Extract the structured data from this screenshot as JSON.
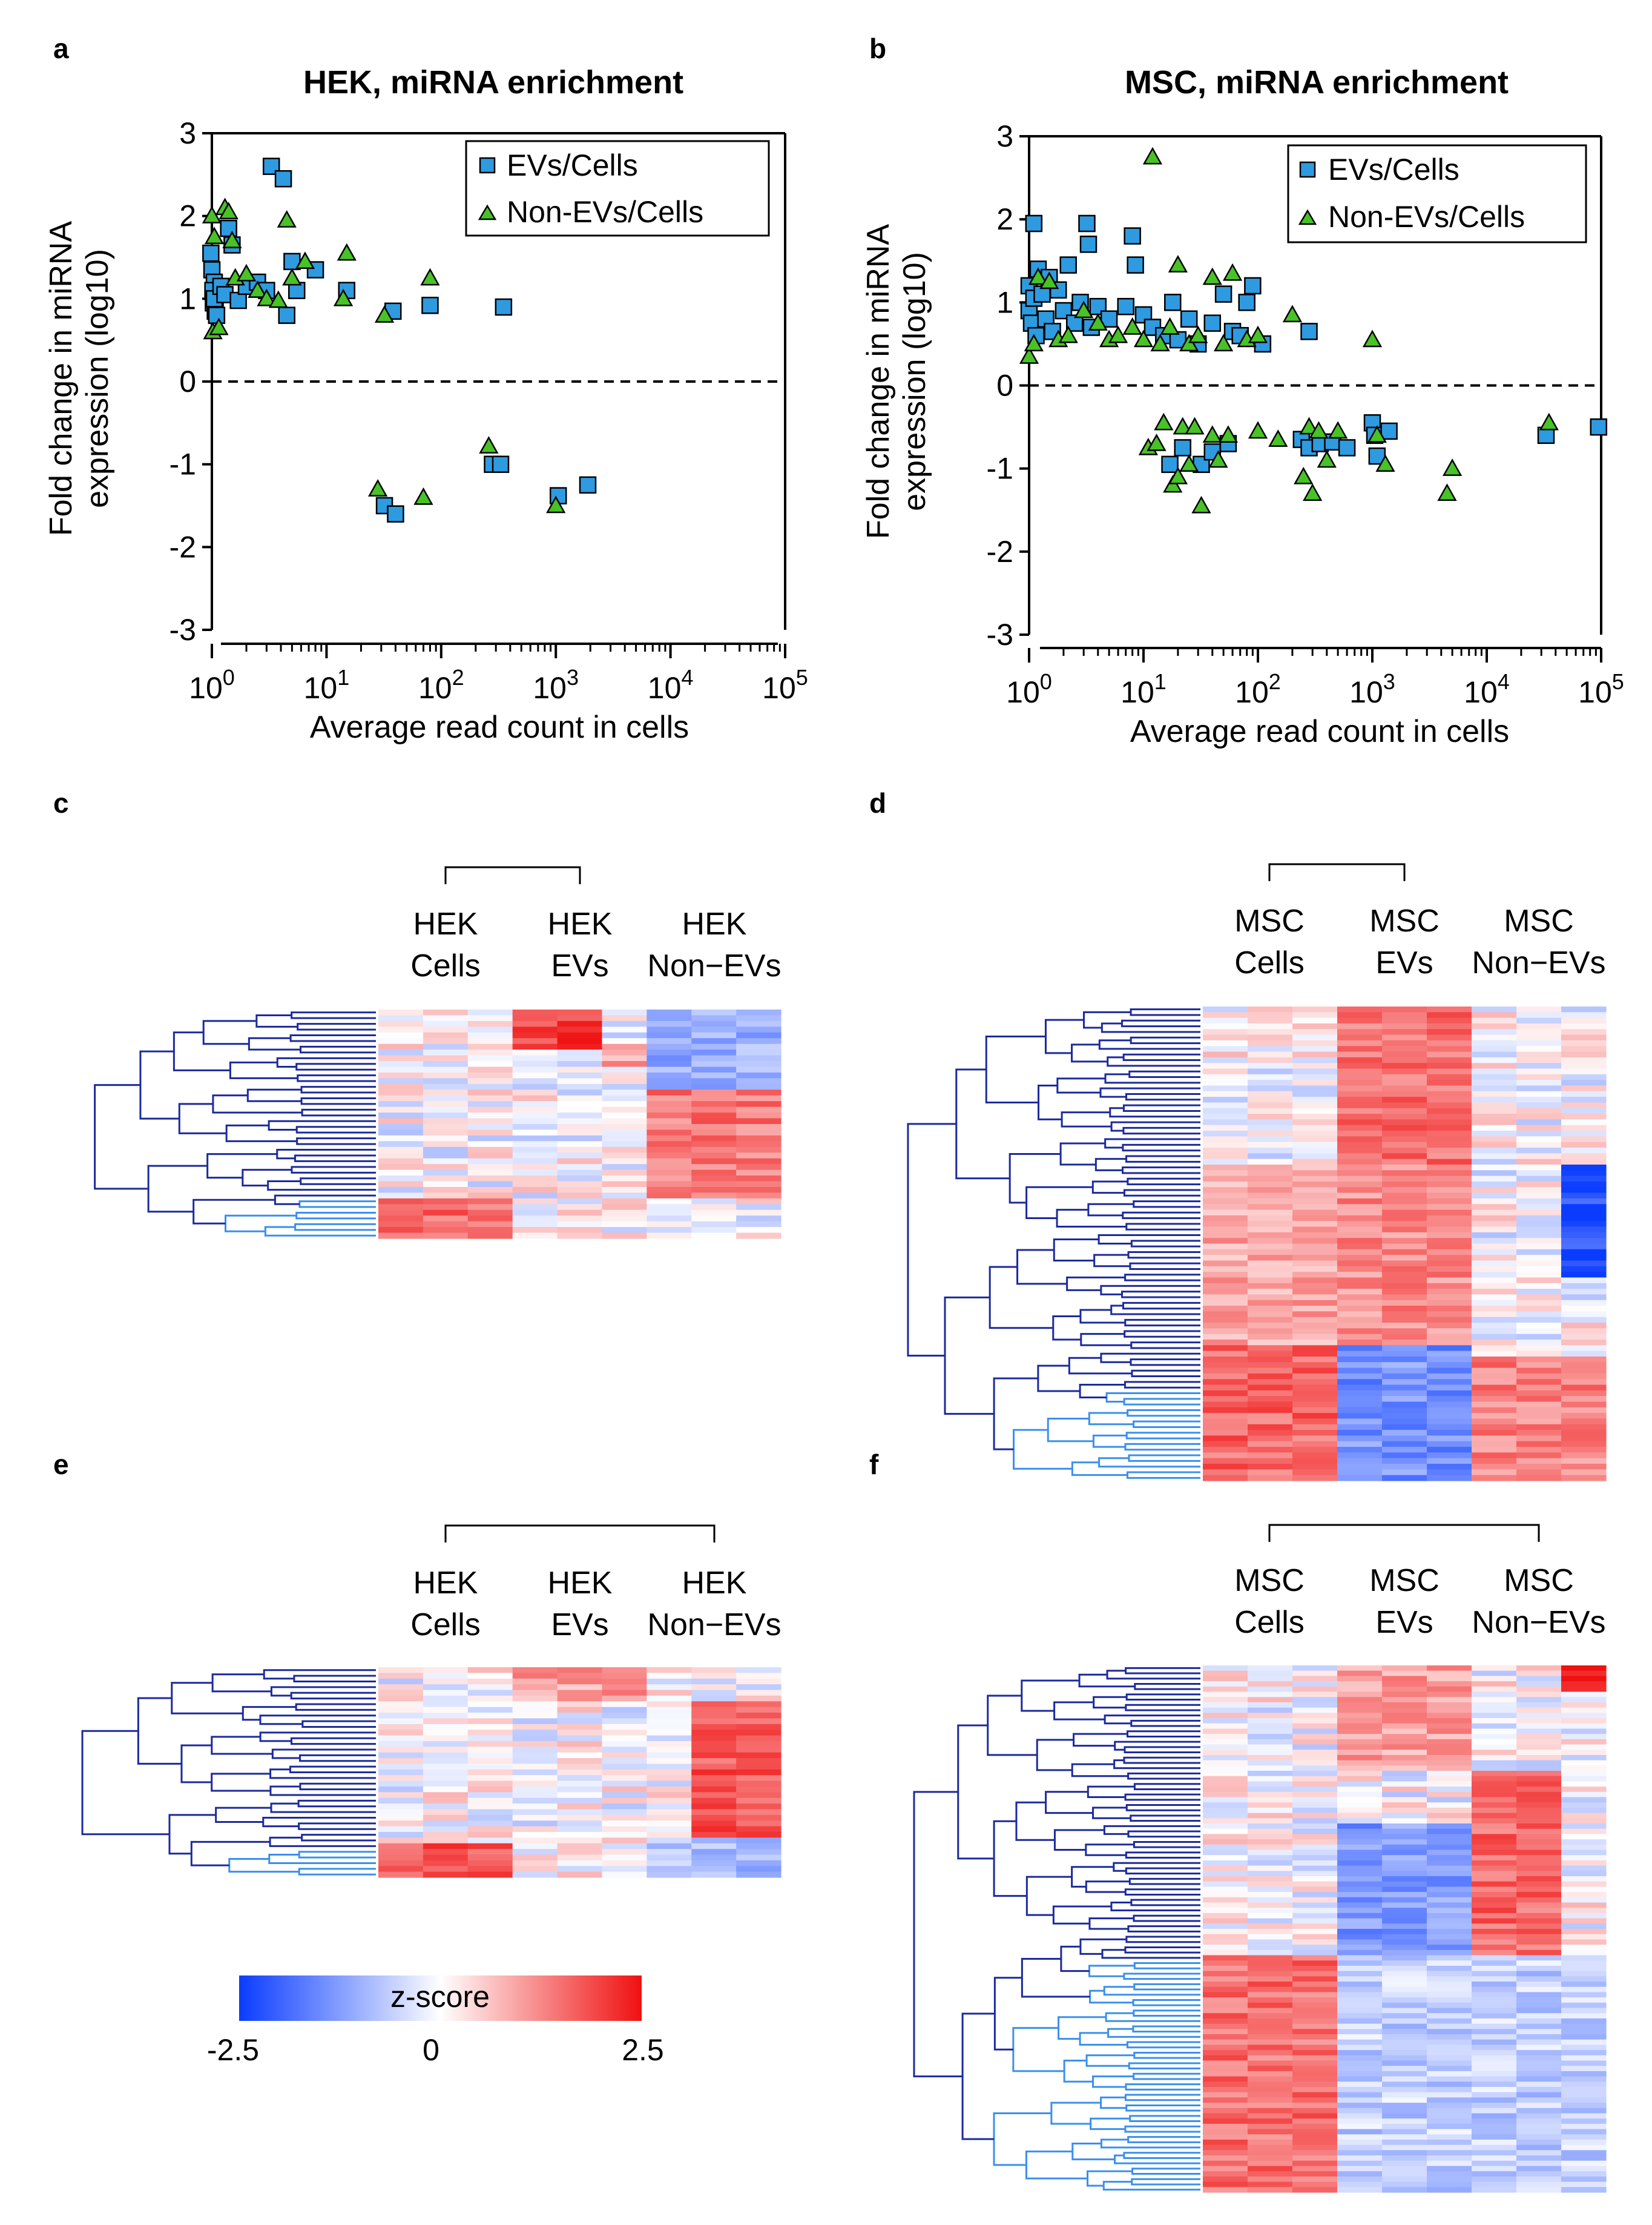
{
  "colors": {
    "ev": "#2e9ae0",
    "nonev": "#48c227",
    "tree_dark": "#1c2a9c",
    "tree_light": "#3a8fee",
    "low": "#0a3cff",
    "mid": "#ffffff",
    "high": "#f01010"
  },
  "panels": {
    "a": {
      "label": "a",
      "title": "HEK, miRNA enrichment"
    },
    "b": {
      "label": "b",
      "title": "MSC, miRNA enrichment"
    },
    "c": {
      "label": "c"
    },
    "d": {
      "label": "d"
    },
    "e": {
      "label": "e"
    },
    "f": {
      "label": "f"
    }
  },
  "axes": {
    "ylabel1": "Fold change in miRNA",
    "ylabel2": "expression (log10)",
    "xlabel": "Average read count in cells",
    "yticks": [
      "3",
      "2",
      "1",
      "0",
      "-1",
      "-2",
      "-3"
    ],
    "xticks": [
      {
        "base": "10",
        "exp": "0"
      },
      {
        "base": "10",
        "exp": "1"
      },
      {
        "base": "10",
        "exp": "2"
      },
      {
        "base": "10",
        "exp": "3"
      },
      {
        "base": "10",
        "exp": "4"
      },
      {
        "base": "10",
        "exp": "5"
      }
    ]
  },
  "legend": {
    "ev": "EVs/Cells",
    "nonev": "Non-EVs/Cells"
  },
  "heatmaps": {
    "hek_groups": [
      {
        "l1": "HEK",
        "l2": "Cells"
      },
      {
        "l1": "HEK",
        "l2": "EVs"
      },
      {
        "l1": "HEK",
        "l2": "Non−EVs"
      }
    ],
    "msc_groups": [
      {
        "l1": "MSC",
        "l2": "Cells"
      },
      {
        "l1": "MSC",
        "l2": "EVs"
      },
      {
        "l1": "MSC",
        "l2": "Non−EVs"
      }
    ],
    "colorbar": {
      "label": "z-score",
      "min": "-2.5",
      "mid": "0",
      "max": "2.5"
    }
  },
  "chart_data": [
    {
      "type": "scatter",
      "title": "HEK, miRNA enrichment",
      "xlabel": "Average read count in cells",
      "ylabel": "Fold change in miRNA expression (log10)",
      "xscale": "log10",
      "xlim_log10": [
        0,
        5
      ],
      "ylim": [
        -3,
        3
      ],
      "reference_line_y": 0,
      "legend_position": "top-right",
      "series": [
        {
          "name": "EVs/Cells",
          "marker": "square",
          "points": [
            [
              0.98,
              1.55
            ],
            [
              1.0,
              1.35
            ],
            [
              1.05,
              1.2
            ],
            [
              1.02,
              1.1
            ],
            [
              1.03,
              0.95
            ],
            [
              1.07,
              0.85
            ],
            [
              1.1,
              0.8
            ],
            [
              1.05,
              1.0
            ],
            [
              1.2,
              1.15
            ],
            [
              1.3,
              1.05
            ],
            [
              1.4,
              1.85
            ],
            [
              1.5,
              1.65
            ],
            [
              1.7,
              0.98
            ],
            [
              2.0,
              1.15
            ],
            [
              2.5,
              1.2
            ],
            [
              3.0,
              1.1
            ],
            [
              3.3,
              2.6
            ],
            [
              4.2,
              2.45
            ],
            [
              4.5,
              0.8
            ],
            [
              5.0,
              1.45
            ],
            [
              5.5,
              1.1
            ],
            [
              8.0,
              1.35
            ],
            [
              15,
              1.1
            ],
            [
              38,
              0.85
            ],
            [
              80,
              0.92
            ],
            [
              350,
              0.9
            ],
            [
              32,
              -1.5
            ],
            [
              40,
              -1.6
            ],
            [
              280,
              -1.0
            ],
            [
              330,
              -1.0
            ],
            [
              1050,
              -1.38
            ],
            [
              1900,
              -1.25
            ]
          ]
        },
        {
          "name": "Non-EVs/Cells",
          "marker": "triangle",
          "points": [
            [
              1.0,
              2.0
            ],
            [
              1.05,
              1.75
            ],
            [
              1.02,
              0.6
            ],
            [
              1.15,
              0.65
            ],
            [
              1.3,
              2.1
            ],
            [
              1.4,
              2.05
            ],
            [
              1.5,
              1.7
            ],
            [
              1.6,
              1.25
            ],
            [
              2.0,
              1.3
            ],
            [
              2.5,
              1.1
            ],
            [
              3.0,
              1.0
            ],
            [
              3.8,
              0.98
            ],
            [
              4.5,
              1.95
            ],
            [
              5.0,
              1.25
            ],
            [
              6.5,
              1.45
            ],
            [
              14,
              1.0
            ],
            [
              15,
              1.55
            ],
            [
              28,
              -1.3
            ],
            [
              32,
              0.8
            ],
            [
              70,
              -1.4
            ],
            [
              80,
              1.25
            ],
            [
              260,
              -0.78
            ],
            [
              1000,
              -1.5
            ]
          ]
        }
      ]
    },
    {
      "type": "scatter",
      "title": "MSC, miRNA enrichment",
      "xlabel": "Average read count in cells",
      "ylabel": "Fold change in miRNA expression (log10)",
      "xscale": "log10",
      "xlim_log10": [
        0,
        5
      ],
      "ylim": [
        -3,
        3
      ],
      "reference_line_y": 0,
      "legend_position": "top-right",
      "series": [
        {
          "name": "EVs/Cells",
          "marker": "square",
          "points": [
            [
              1.1,
              1.95
            ],
            [
              1.0,
              1.2
            ],
            [
              1.0,
              0.9
            ],
            [
              1.05,
              0.75
            ],
            [
              1.1,
              1.05
            ],
            [
              1.15,
              0.6
            ],
            [
              1.2,
              1.4
            ],
            [
              1.3,
              1.1
            ],
            [
              1.4,
              0.8
            ],
            [
              1.5,
              1.3
            ],
            [
              1.6,
              0.65
            ],
            [
              1.8,
              1.15
            ],
            [
              2.0,
              0.9
            ],
            [
              2.2,
              1.45
            ],
            [
              2.5,
              0.75
            ],
            [
              2.8,
              1.0
            ],
            [
              3.2,
              1.95
            ],
            [
              3.3,
              1.7
            ],
            [
              3.5,
              0.7
            ],
            [
              4.0,
              0.95
            ],
            [
              5.0,
              0.8
            ],
            [
              7.0,
              0.95
            ],
            [
              8.0,
              1.8
            ],
            [
              8.5,
              1.45
            ],
            [
              10,
              0.85
            ],
            [
              12,
              0.7
            ],
            [
              15,
              0.6
            ],
            [
              18,
              1.0
            ],
            [
              20,
              0.55
            ],
            [
              25,
              0.8
            ],
            [
              30,
              0.5
            ],
            [
              40,
              0.75
            ],
            [
              50,
              1.1
            ],
            [
              60,
              0.65
            ],
            [
              70,
              0.6
            ],
            [
              80,
              1.0
            ],
            [
              90,
              1.2
            ],
            [
              110,
              0.5
            ],
            [
              280,
              0.65
            ],
            [
              17,
              -0.95
            ],
            [
              22,
              -0.75
            ],
            [
              32,
              -0.95
            ],
            [
              40,
              -0.8
            ],
            [
              55,
              -0.7
            ],
            [
              240,
              -0.65
            ],
            [
              280,
              -0.75
            ],
            [
              350,
              -0.7
            ],
            [
              450,
              -0.68
            ],
            [
              600,
              -0.75
            ],
            [
              1000,
              -0.45
            ],
            [
              1050,
              -0.6
            ],
            [
              1100,
              -0.85
            ],
            [
              1400,
              -0.55
            ],
            [
              33000,
              -0.6
            ],
            [
              95000,
              -0.5
            ]
          ]
        },
        {
          "name": "Non-EVs/Cells",
          "marker": "triangle",
          "points": [
            [
              1.0,
              0.35
            ],
            [
              1.1,
              0.5
            ],
            [
              1.2,
              1.3
            ],
            [
              1.5,
              1.25
            ],
            [
              1.8,
              0.55
            ],
            [
              2.2,
              0.6
            ],
            [
              3.0,
              0.9
            ],
            [
              4.0,
              0.75
            ],
            [
              5.0,
              0.55
            ],
            [
              6.0,
              0.6
            ],
            [
              8.0,
              0.7
            ],
            [
              10,
              0.55
            ],
            [
              12,
              2.75
            ],
            [
              14,
              0.5
            ],
            [
              17,
              0.7
            ],
            [
              20,
              1.45
            ],
            [
              25,
              0.5
            ],
            [
              30,
              0.6
            ],
            [
              40,
              1.3
            ],
            [
              50,
              0.5
            ],
            [
              60,
              1.35
            ],
            [
              80,
              0.55
            ],
            [
              100,
              0.6
            ],
            [
              200,
              0.85
            ],
            [
              1000,
              0.55
            ],
            [
              11,
              -0.75
            ],
            [
              13,
              -0.7
            ],
            [
              15,
              -0.45
            ],
            [
              18,
              -1.2
            ],
            [
              20,
              -1.1
            ],
            [
              22,
              -0.5
            ],
            [
              25,
              -0.95
            ],
            [
              28,
              -0.5
            ],
            [
              32,
              -1.45
            ],
            [
              40,
              -0.6
            ],
            [
              45,
              -0.9
            ],
            [
              55,
              -0.6
            ],
            [
              100,
              -0.55
            ],
            [
              150,
              -0.65
            ],
            [
              250,
              -1.1
            ],
            [
              280,
              -0.5
            ],
            [
              300,
              -1.3
            ],
            [
              340,
              -0.55
            ],
            [
              400,
              -0.9
            ],
            [
              500,
              -0.55
            ],
            [
              1100,
              -0.6
            ],
            [
              1300,
              -0.95
            ],
            [
              4500,
              -1.3
            ],
            [
              5000,
              -1.0
            ],
            [
              35000,
              -0.45
            ]
          ]
        }
      ]
    },
    {
      "type": "heatmap",
      "title": "c",
      "columns": [
        "HEK Cells",
        "HEK Cells",
        "HEK Cells",
        "HEK EVs",
        "HEK EVs",
        "HEK EVs",
        "HEK Non-EVs",
        "HEK Non-EVs",
        "HEK Non-EVs"
      ],
      "rows": 40,
      "dark_leaves": 33,
      "zrange": [
        -2.5,
        2.5
      ],
      "blocks": [
        {
          "rows": [
            0,
            7
          ],
          "cols": [
            3,
            4
          ],
          "z": 2.0
        },
        {
          "rows": [
            6,
            10
          ],
          "cols": [
            5,
            5
          ],
          "z": 1.0
        },
        {
          "rows": [
            14,
            33
          ],
          "cols": [
            6,
            8
          ],
          "z": 1.4
        },
        {
          "rows": [
            33,
            40
          ],
          "cols": [
            0,
            2
          ],
          "z": 1.6
        },
        {
          "rows": [
            0,
            14
          ],
          "cols": [
            6,
            8
          ],
          "z": -1.0
        }
      ]
    },
    {
      "type": "heatmap",
      "title": "d",
      "columns": [
        "MSC Cells",
        "MSC Cells",
        "MSC Cells",
        "MSC EVs",
        "MSC EVs",
        "MSC EVs",
        "MSC Non-EVs",
        "MSC Non-EVs",
        "MSC Non-EVs"
      ],
      "rows": 84,
      "dark_leaves": 67,
      "zrange": [
        -2.5,
        2.5
      ],
      "blocks": [
        {
          "rows": [
            0,
            30
          ],
          "cols": [
            3,
            5
          ],
          "z": 1.5
        },
        {
          "rows": [
            28,
            60
          ],
          "cols": [
            0,
            2
          ],
          "z": 0.9
        },
        {
          "rows": [
            28,
            60
          ],
          "cols": [
            3,
            5
          ],
          "z": 1.2
        },
        {
          "rows": [
            60,
            84
          ],
          "cols": [
            0,
            2
          ],
          "z": 1.6
        },
        {
          "rows": [
            60,
            84
          ],
          "cols": [
            3,
            5
          ],
          "z": -1.4
        },
        {
          "rows": [
            62,
            84
          ],
          "cols": [
            6,
            8
          ],
          "z": 1.3
        },
        {
          "rows": [
            28,
            48
          ],
          "cols": [
            8,
            8
          ],
          "z": -2.2
        }
      ]
    },
    {
      "type": "heatmap",
      "title": "e",
      "columns": [
        "HEK Cells",
        "HEK Cells",
        "HEK Cells",
        "HEK EVs",
        "HEK EVs",
        "HEK EVs",
        "HEK Non-EVs",
        "HEK Non-EVs",
        "HEK Non-EVs"
      ],
      "rows": 37,
      "dark_leaves": 31,
      "zrange": [
        -2.5,
        2.5
      ],
      "blocks": [
        {
          "rows": [
            0,
            6
          ],
          "cols": [
            3,
            5
          ],
          "z": 1.0
        },
        {
          "rows": [
            6,
            30
          ],
          "cols": [
            7,
            8
          ],
          "z": 1.8
        },
        {
          "rows": [
            31,
            37
          ],
          "cols": [
            0,
            2
          ],
          "z": 1.8
        },
        {
          "rows": [
            30,
            37
          ],
          "cols": [
            6,
            8
          ],
          "z": -0.8
        }
      ]
    },
    {
      "type": "heatmap",
      "title": "f",
      "columns": [
        "MSC Cells",
        "MSC Cells",
        "MSC Cells",
        "MSC EVs",
        "MSC EVs",
        "MSC EVs",
        "MSC Non-EVs",
        "MSC Non-EVs",
        "MSC Non-EVs"
      ],
      "rows": 100,
      "dark_leaves": 55,
      "zrange": [
        -2.5,
        2.5
      ],
      "blocks": [
        {
          "rows": [
            0,
            20
          ],
          "cols": [
            3,
            5
          ],
          "z": 1.0
        },
        {
          "rows": [
            20,
            55
          ],
          "cols": [
            6,
            7
          ],
          "z": 1.6
        },
        {
          "rows": [
            30,
            55
          ],
          "cols": [
            3,
            5
          ],
          "z": -1.3
        },
        {
          "rows": [
            55,
            100
          ],
          "cols": [
            0,
            2
          ],
          "z": 1.5
        },
        {
          "rows": [
            55,
            100
          ],
          "cols": [
            3,
            8
          ],
          "z": -0.6
        },
        {
          "rows": [
            0,
            5
          ],
          "cols": [
            8,
            8
          ],
          "z": 2.2
        }
      ]
    }
  ]
}
